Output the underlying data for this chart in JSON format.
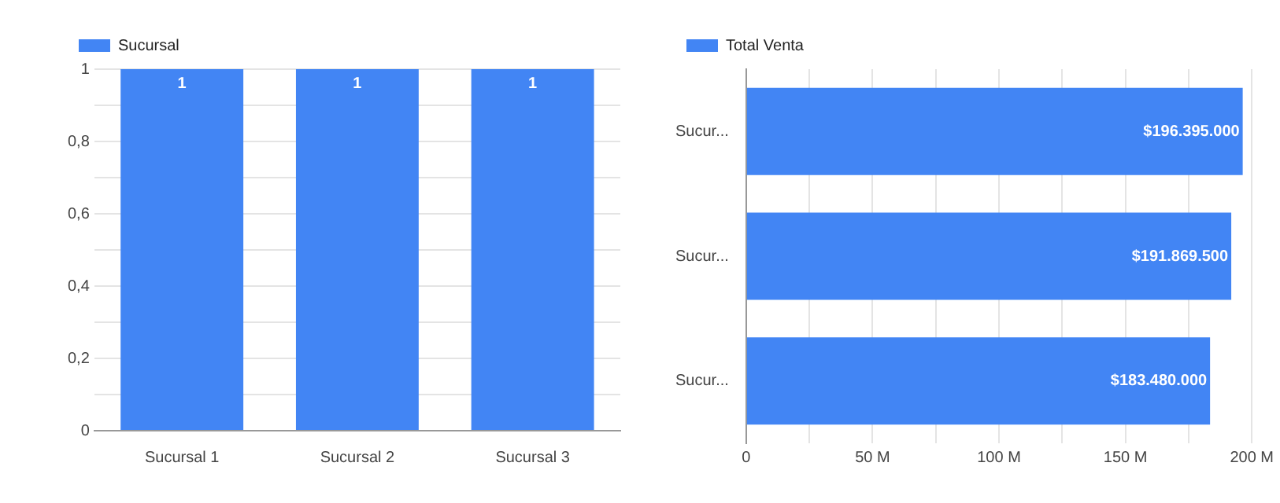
{
  "chart_data": [
    {
      "type": "bar",
      "categories": [
        "Sucursal 1",
        "Sucursal 2",
        "Sucursal 3"
      ],
      "series": [
        {
          "name": "Sucursal",
          "color": "#4285f4",
          "values": [
            1,
            1,
            1
          ]
        }
      ],
      "ylim": [
        0,
        1
      ],
      "yticks": [
        0,
        {
          "value": 0.1,
          "label": null
        },
        {
          "value": 0.2,
          "label": "0,2"
        },
        {
          "value": 0.3,
          "label": null
        },
        {
          "value": 0.4,
          "label": "0,4"
        },
        {
          "value": 0.5,
          "label": null
        },
        {
          "value": 0.6,
          "label": "0,6"
        },
        {
          "value": 0.7,
          "label": null
        },
        {
          "value": 0.8,
          "label": "0,8"
        },
        {
          "value": 0.9,
          "label": null
        },
        1
      ],
      "grid": true,
      "legend": "top left",
      "data_labels": true
    },
    {
      "type": "bar",
      "orientation": "horizontal",
      "categories": [
        "Sucur...",
        "Sucur...",
        "Sucur..."
      ],
      "series": [
        {
          "name": "Total Venta",
          "color": "#4285f4",
          "values": [
            196395000,
            191869500,
            183480000
          ],
          "value_labels": [
            "$196.395.000",
            "$191.869.500",
            "$183.480.000"
          ]
        }
      ],
      "xlim": [
        0,
        200000000
      ],
      "xticks": [
        0,
        {
          "value": 25000000,
          "label": null
        },
        {
          "value": 50000000,
          "label": "50 M"
        },
        {
          "value": 75000000,
          "label": null
        },
        {
          "value": 100000000,
          "label": "100 M"
        },
        {
          "value": 125000000,
          "label": null
        },
        {
          "value": 150000000,
          "label": "150 M"
        },
        {
          "value": 175000000,
          "label": null
        },
        {
          "value": 200000000,
          "label": "200 M"
        }
      ],
      "grid": true,
      "legend": "top left"
    }
  ]
}
